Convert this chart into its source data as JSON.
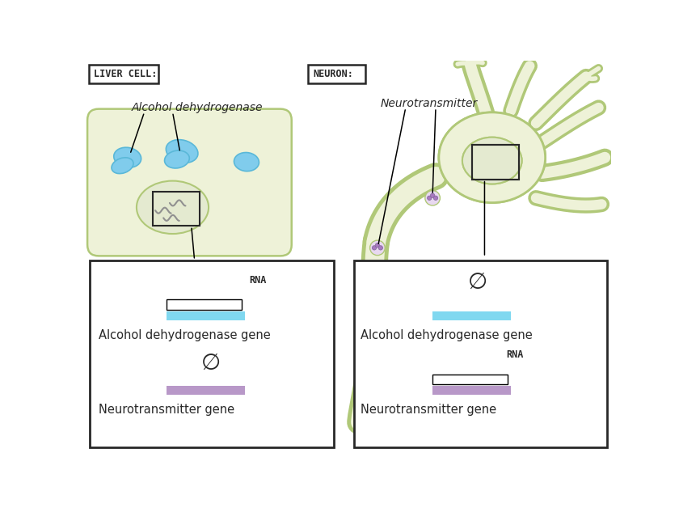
{
  "bg_color": "none",
  "liver_cell_label": "LIVER CELL:",
  "neuron_label": "NEURON:",
  "alcohol_label": "Alcohol dehydrogenase",
  "neurotransmitter_label": "Neurotransmitter",
  "rna_label": "RNA",
  "alcohol_gene_label": "Alcohol dehydrogenase gene",
  "neurotransmitter_gene_label": "Neurotransmitter gene",
  "cell_fill": "#eef2d8",
  "cell_edge": "#b0c878",
  "nucleus_fill": "#e4ead0",
  "nucleus_edge": "#b0c878",
  "protein_color": "#80ccec",
  "vesicle_fill": "#e8d8f0",
  "vesicle_dot": "#a878c0",
  "gene_active_blue": "#80d8f0",
  "gene_inactive_purple": "#b898c8",
  "rna_color": "#e87070",
  "dna_color": "#a0a0a0",
  "box_edge": "#282828",
  "text_color": "#282828"
}
